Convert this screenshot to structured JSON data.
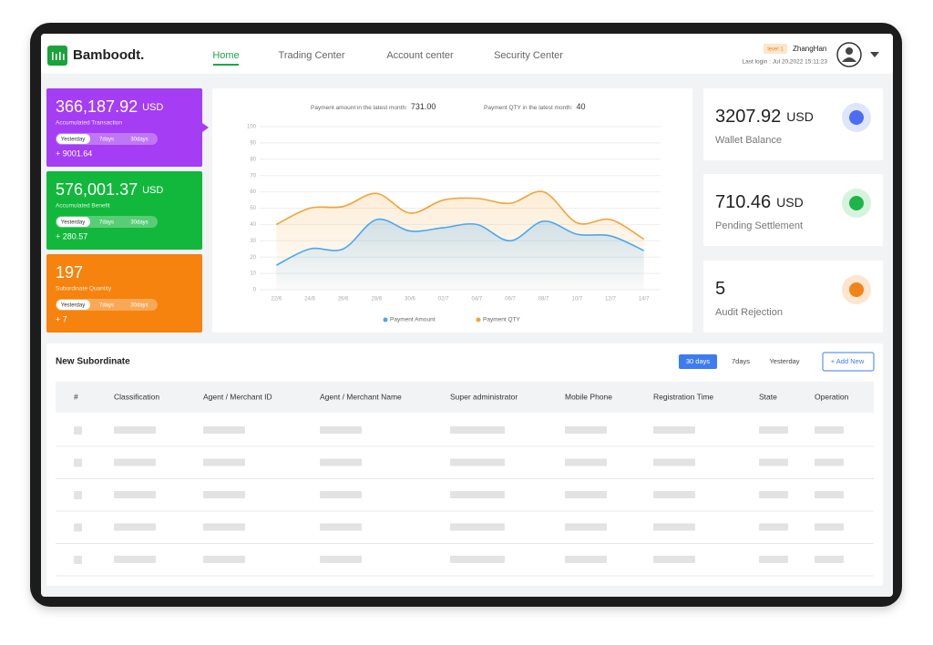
{
  "header": {
    "logo": "Bamboodt.",
    "nav": [
      "Home",
      "Trading Center",
      "Account center",
      "Security Center"
    ],
    "level": "level 1",
    "user": "ZhangHan",
    "last_login": "Last login : Jul 20,2022 15:11:23"
  },
  "summary_cards": [
    {
      "value": "366,187.92",
      "unit": "USD",
      "label": "Accumulated Transaction",
      "tabs": [
        "Yesterday",
        "7days",
        "30days"
      ],
      "change": "+ 9001.64"
    },
    {
      "value": "576,001.37",
      "unit": "USD",
      "label": "Accumulated Benefit",
      "tabs": [
        "Yesterday",
        "7days",
        "30days"
      ],
      "change": "+ 280.57"
    },
    {
      "value": "197",
      "label": "Subordinate Quantity",
      "tabs": [
        "Yesterday",
        "7days",
        "30days"
      ],
      "change": "+ 7"
    }
  ],
  "chart_data": {
    "type": "line",
    "amount_label": "Payment amount in the latest month:",
    "amount_value": "731.00",
    "qty_label": "Payment QTY in the latest month:",
    "qty_value": "40",
    "categories": [
      "22/6",
      "24/6",
      "26/6",
      "28/6",
      "30/6",
      "02/7",
      "04/7",
      "06/7",
      "08/7",
      "10/7",
      "12/7",
      "14/7"
    ],
    "series": [
      {
        "name": "Payment Amount",
        "color": "#4aa8f0",
        "values": [
          15,
          25,
          25,
          43,
          36,
          38,
          40,
          30,
          42,
          34,
          33,
          24
        ]
      },
      {
        "name": "Payment QTY",
        "color": "#f2a436",
        "values": [
          40,
          50,
          51,
          59,
          47,
          55,
          56,
          53,
          60,
          41,
          43,
          31
        ]
      }
    ],
    "ylim": [
      0,
      100
    ],
    "yticks": [
      0,
      10,
      20,
      30,
      40,
      50,
      60,
      70,
      80,
      90,
      100
    ],
    "grid": true
  },
  "balance_cards": [
    {
      "value": "3207.92",
      "unit": "USD",
      "label": "Wallet Balance"
    },
    {
      "value": "710.46",
      "unit": "USD",
      "label": "Pending Settlement"
    },
    {
      "value": "5",
      "label": "Audit Rejection"
    }
  ],
  "table": {
    "title": "New Subordinate",
    "filters": [
      "30 days",
      "7days",
      "Yesterday"
    ],
    "add_button": "+ Add New",
    "columns": [
      "#",
      "Classification",
      "Agent / Merchant ID",
      "Agent / Merchant Name",
      "Super administrator",
      "Mobile Phone",
      "Registration Time",
      "State",
      "Operation"
    ]
  }
}
